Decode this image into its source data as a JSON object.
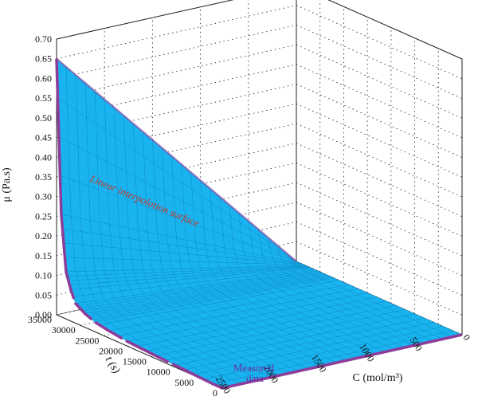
{
  "chart_data": {
    "type": "surface",
    "title": "",
    "axes": {
      "z": {
        "label": "μ (Pa.s)",
        "ticks": [
          "0.00",
          "0.05",
          "0.10",
          "0.15",
          "0.20",
          "0.25",
          "0.30",
          "0.35",
          "0.40",
          "0.45",
          "0.50",
          "0.55",
          "0.60",
          "0.65",
          "0.70"
        ],
        "range": [
          0,
          0.7
        ]
      },
      "t": {
        "label": "t (s)",
        "ticks": [
          "35000",
          "30000",
          "25000",
          "20000",
          "15000",
          "10000",
          "5000",
          "0"
        ],
        "range": [
          0,
          35000
        ]
      },
      "c": {
        "label": "C (mol/m³)",
        "ticks": [
          "2500",
          "2000",
          "1500",
          "1000",
          "500",
          "0"
        ],
        "range": [
          0,
          2500
        ]
      }
    },
    "annotations": {
      "surface_label": "Linear interpolation surface",
      "data_label": "Measured data"
    },
    "measured_data": {
      "at_C_2500": {
        "t": [
          0,
          2000,
          5000,
          8000,
          12000,
          16000,
          20000,
          24000,
          27000,
          29000,
          31000,
          32000,
          33000,
          34000,
          35000
        ],
        "mu": [
          0.0,
          0.0,
          0.002,
          0.004,
          0.006,
          0.009,
          0.012,
          0.018,
          0.025,
          0.035,
          0.05,
          0.08,
          0.12,
          0.26,
          0.65
        ]
      },
      "at_t_35000": {
        "C": [
          2500,
          0
        ],
        "mu": [
          0.65,
          0.0
        ]
      }
    },
    "grid": true,
    "colors": {
      "surface": "#19b4f0",
      "mesh": "#0a78b4",
      "measured": "#8c3c9a",
      "surface_label": "#c0392b",
      "data_label": "#6a2fa0"
    }
  }
}
